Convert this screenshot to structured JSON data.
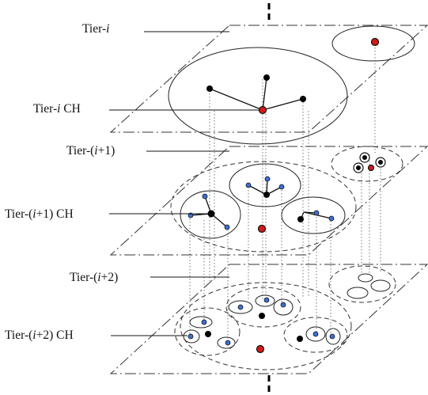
{
  "labels": {
    "tier_i": {
      "prefix": "Tier-",
      "var": "i",
      "suffix": ""
    },
    "tier_i_ch": {
      "prefix": "Tier-",
      "var": "i",
      "suffix": " CH"
    },
    "tier_i1": {
      "prefix": "Tier-(",
      "var": "i",
      "suffix": "+1)"
    },
    "tier_i1_ch": {
      "prefix": "Tier-(",
      "var": "i",
      "suffix": "+1) CH"
    },
    "tier_i2": {
      "prefix": "Tier-(",
      "var": "i",
      "suffix": "+2)"
    },
    "tier_i2_ch": {
      "prefix": "Tier-(",
      "var": "i",
      "suffix": "+2) CH"
    }
  },
  "colors": {
    "cluster_head": "#d21a1a",
    "member_node": "#3b6fd4",
    "node": "#000000"
  }
}
